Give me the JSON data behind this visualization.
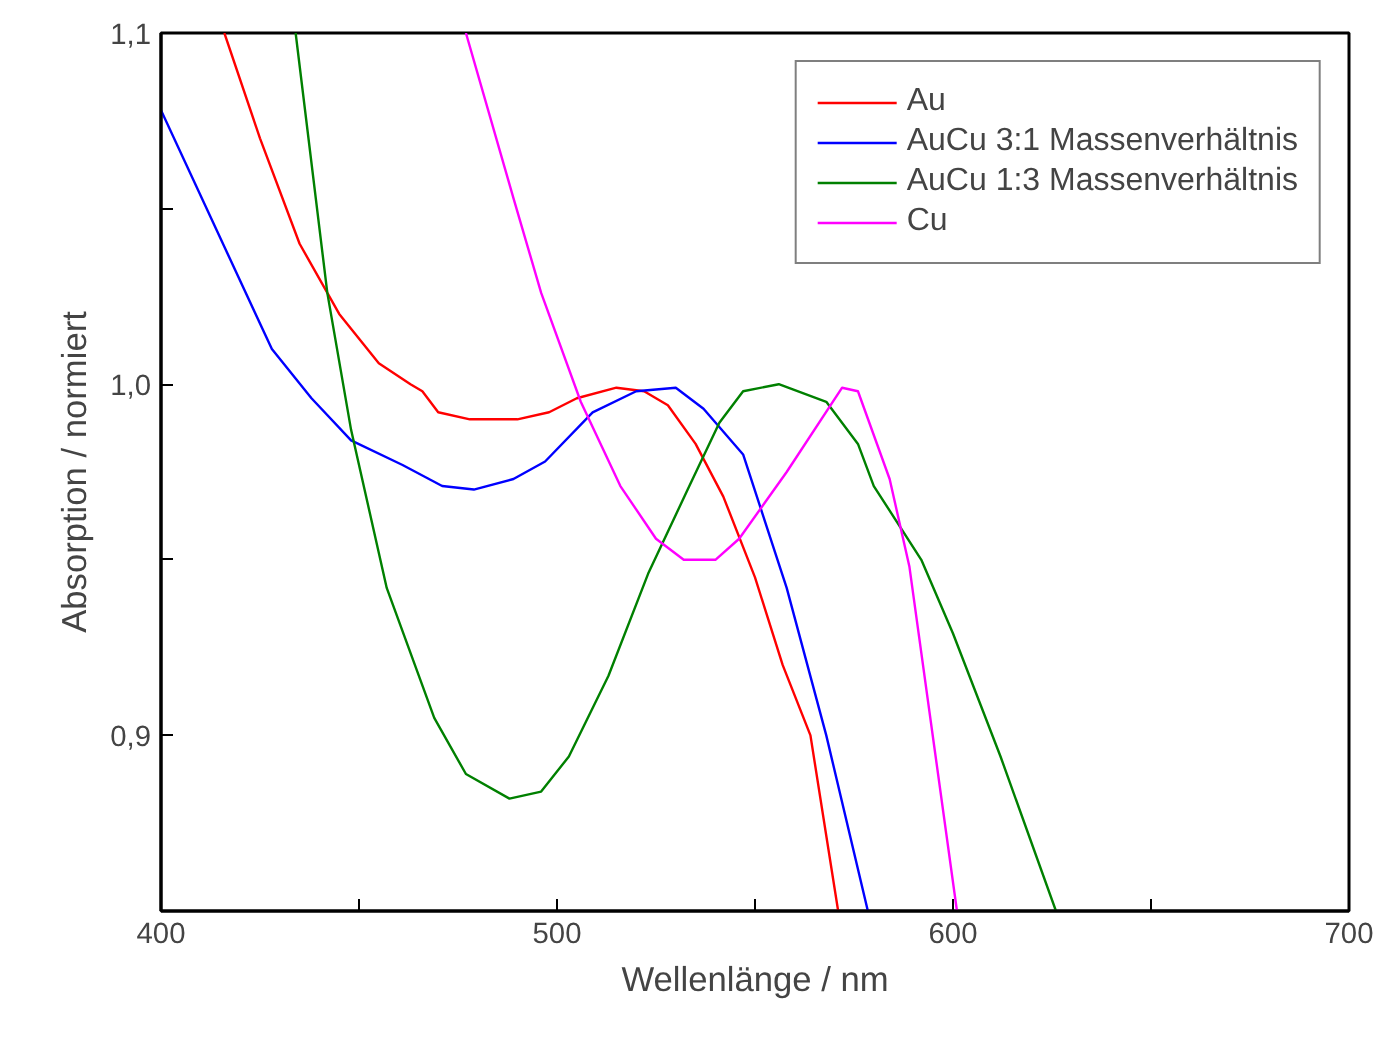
{
  "chart_data": {
    "type": "line",
    "xlabel": "Wellenlänge / nm",
    "ylabel": "Absorption / normiert",
    "xlim": [
      400,
      700
    ],
    "ylim": [
      0.85,
      1.1
    ],
    "xticks": [
      400,
      {
        "value": 450,
        "label": null
      },
      500,
      {
        "value": 550,
        "label": null
      },
      600,
      {
        "value": 650,
        "label": null
      },
      700
    ],
    "yticks": [
      {
        "value": 0.9,
        "label": "0,9"
      },
      {
        "value": 0.95,
        "label": null
      },
      {
        "value": 1.0,
        "label": "1,0"
      },
      {
        "value": 1.05,
        "label": null
      },
      {
        "value": 1.1,
        "label": "1,1"
      }
    ],
    "grid": false,
    "legend": "top right",
    "marker": "none",
    "line_style": "solid",
    "series": [
      {
        "name": "Au",
        "color": "#ff0000",
        "x": [
          416,
          425,
          435,
          445,
          455,
          463,
          466,
          470,
          478,
          490,
          498,
          505,
          515,
          522,
          528,
          535,
          542,
          550,
          557,
          564,
          571
        ],
        "values": [
          1.1,
          1.07,
          1.04,
          1.02,
          1.006,
          1.0,
          0.998,
          0.992,
          0.99,
          0.99,
          0.992,
          0.996,
          0.999,
          0.998,
          0.994,
          0.983,
          0.968,
          0.945,
          0.92,
          0.9,
          0.85
        ]
      },
      {
        "name": "AuCu 3:1 Massenverhältnis",
        "color": "#0000ff",
        "x": [
          400,
          428,
          438,
          448,
          461,
          471,
          479,
          489,
          497,
          509,
          520,
          530,
          537,
          547,
          558,
          568,
          578.5
        ],
        "values": [
          1.078,
          1.01,
          0.996,
          0.984,
          0.977,
          0.971,
          0.97,
          0.973,
          0.978,
          0.992,
          0.998,
          0.999,
          0.993,
          0.98,
          0.942,
          0.9,
          0.85
        ]
      },
      {
        "name": "AuCu 1:3 Massenverhältnis",
        "color": "#008000",
        "x": [
          434,
          442,
          448,
          457,
          469,
          477,
          488,
          496,
          503,
          513,
          523,
          533,
          541,
          547,
          556,
          568,
          576,
          580,
          592,
          600,
          612,
          626
        ],
        "values": [
          1.1,
          1.026,
          0.987,
          0.942,
          0.905,
          0.889,
          0.882,
          0.884,
          0.894,
          0.917,
          0.946,
          0.97,
          0.989,
          0.998,
          1.0,
          0.995,
          0.983,
          0.971,
          0.95,
          0.929,
          0.894,
          0.85
        ]
      },
      {
        "name": "Cu",
        "color": "#ff00ff",
        "x": [
          477,
          489,
          496,
          506,
          516,
          525,
          532,
          540,
          546,
          558,
          572,
          576,
          584,
          589,
          601
        ],
        "values": [
          1.1,
          1.053,
          1.026,
          0.995,
          0.971,
          0.956,
          0.95,
          0.95,
          0.956,
          0.975,
          0.999,
          0.998,
          0.973,
          0.948,
          0.85
        ]
      }
    ]
  }
}
